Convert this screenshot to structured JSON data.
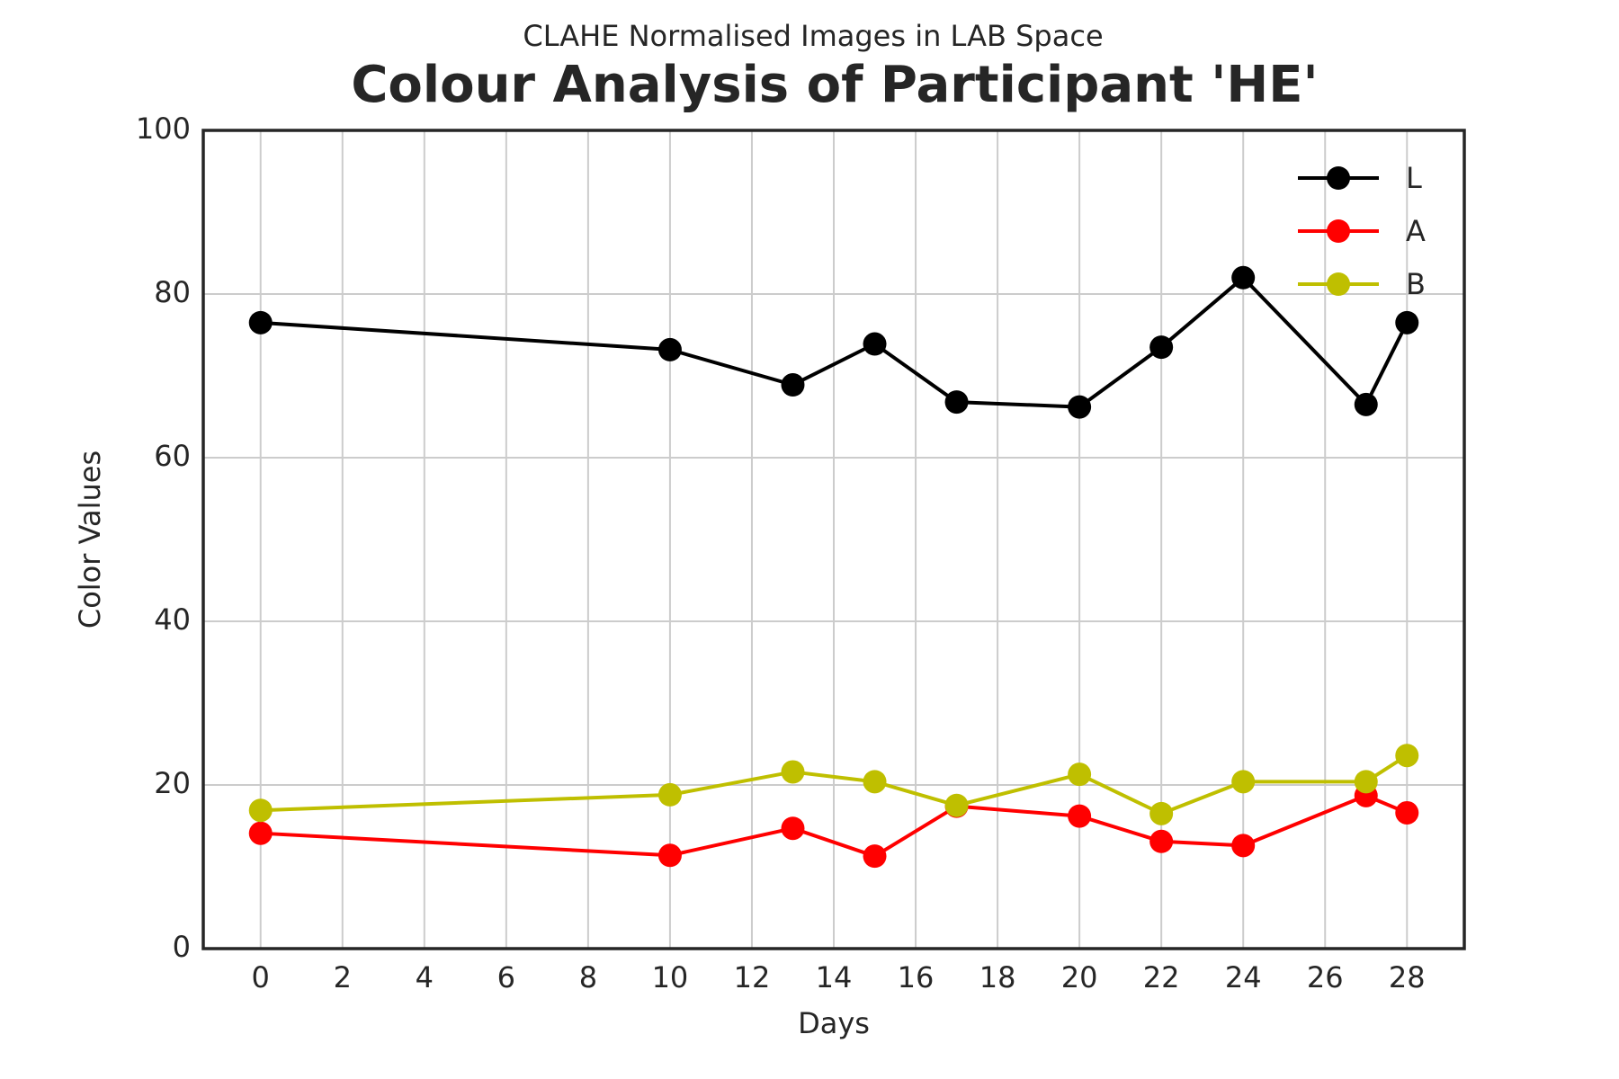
{
  "chart_data": {
    "type": "line",
    "subtitle": "CLAHE Normalised Images in LAB Space",
    "title": "Colour Analysis of Participant 'HE'",
    "x_label": "Days",
    "y_label": "Color Values",
    "x": [
      0,
      10,
      13,
      15,
      17,
      20,
      22,
      24,
      27,
      28
    ],
    "series": [
      {
        "name": "L",
        "color": "#000000",
        "values": [
          76.5,
          73.2,
          68.9,
          73.9,
          66.8,
          66.2,
          73.5,
          82.0,
          66.5,
          76.5
        ]
      },
      {
        "name": "A",
        "color": "#ff0000",
        "values": [
          14.1,
          11.4,
          14.7,
          11.3,
          17.4,
          16.2,
          13.1,
          12.6,
          18.7,
          16.6
        ]
      },
      {
        "name": "B",
        "color": "#bfbf00",
        "values": [
          16.9,
          18.8,
          21.6,
          20.4,
          17.5,
          21.3,
          16.5,
          20.4,
          20.4,
          23.6
        ]
      }
    ],
    "xlim": [
      -1.4,
      29.4
    ],
    "ylim": [
      0,
      100
    ],
    "xticks": [
      0,
      2,
      4,
      6,
      8,
      10,
      12,
      14,
      16,
      18,
      20,
      22,
      24,
      26,
      28
    ],
    "yticks": [
      0,
      20,
      40,
      60,
      80,
      100
    ],
    "grid": true,
    "legend": "upper right"
  }
}
